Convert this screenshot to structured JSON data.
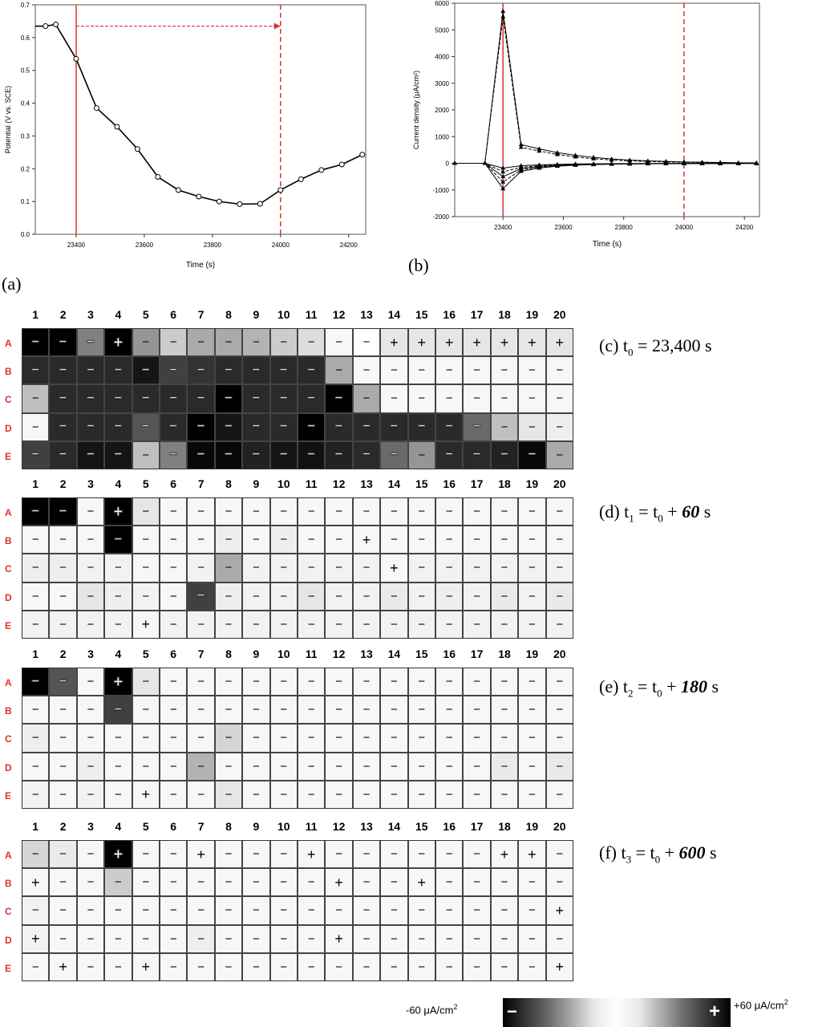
{
  "panel_labels": {
    "a": "(a)",
    "b": "(b)"
  },
  "chart_data": [
    {
      "id": "a",
      "type": "line",
      "xlabel": "Time (s)",
      "ylabel": "Potential (V vs. SCE)",
      "xlim": [
        23280,
        24250
      ],
      "ylim": [
        0.0,
        0.7
      ],
      "xticks": [
        23400,
        23600,
        23800,
        24000,
        24200
      ],
      "yticks": [
        0.0,
        0.1,
        0.2,
        0.3,
        0.4,
        0.5,
        0.6,
        0.7
      ],
      "ytick_labels": [
        "0.0",
        "0.1",
        "0.2",
        "0.3",
        "0.4",
        "0.5",
        "0.6",
        "0.7"
      ],
      "x": [
        23280,
        23310,
        23340,
        23400,
        23460,
        23520,
        23580,
        23640,
        23700,
        23760,
        23820,
        23880,
        23940,
        24000,
        24060,
        24120,
        24180,
        24240
      ],
      "y": [
        0.635,
        0.635,
        0.64,
        0.535,
        0.385,
        0.328,
        0.26,
        0.175,
        0.135,
        0.115,
        0.1,
        0.092,
        0.093,
        0.135,
        0.168,
        0.196,
        0.213,
        0.243
      ],
      "solid_vline": 23400,
      "dashed_vline": 24000,
      "arrow": {
        "from": 23400,
        "to": 24000,
        "y": 0.635
      },
      "accent": "#e03030"
    },
    {
      "id": "b",
      "type": "line",
      "xlabel": "Time (s)",
      "ylabel": "Current density (μA/cm²)",
      "xlim": [
        23240,
        24250
      ],
      "ylim": [
        -2000,
        6000
      ],
      "xticks": [
        23400,
        23600,
        23800,
        24000,
        24200
      ],
      "yticks": [
        -2000,
        -1000,
        0,
        1000,
        2000,
        3000,
        4000,
        5000,
        6000
      ],
      "solid_vline": 23400,
      "dashed_vline": 24000,
      "series": [
        {
          "values_x": [
            23240,
            23340,
            23400,
            23460,
            23520,
            23580,
            23640,
            23700,
            23760,
            23820,
            23880,
            23940,
            24000,
            24060,
            24120,
            24180,
            24240
          ],
          "values_y": [
            0,
            0,
            5700,
            700,
            540,
            400,
            300,
            220,
            160,
            120,
            90,
            70,
            50,
            40,
            30,
            20,
            15
          ]
        },
        {
          "values_x": [
            23240,
            23340,
            23400,
            23460,
            23520,
            23580,
            23640,
            23700,
            23760,
            23820,
            23880,
            23940,
            24000,
            24060,
            24120,
            24180,
            24240
          ],
          "values_y": [
            0,
            0,
            5500,
            600,
            460,
            330,
            240,
            170,
            120,
            90,
            70,
            50,
            40,
            30,
            20,
            15,
            10
          ]
        },
        {
          "values_x": [
            23240,
            23340,
            23400,
            23460,
            23520,
            23580,
            23640,
            23700,
            23760,
            23820,
            23880,
            23940,
            24000,
            24060,
            24120,
            24180,
            24240
          ],
          "values_y": [
            0,
            0,
            -950,
            -300,
            -180,
            -110,
            -70,
            -50,
            -35,
            -25,
            -20,
            -15,
            -10,
            -8,
            -6,
            -5,
            -4
          ]
        },
        {
          "values_x": [
            23240,
            23340,
            23400,
            23460,
            23520,
            23580,
            23640,
            23700,
            23760,
            23820,
            23880,
            23940,
            24000,
            24060,
            24120,
            24180,
            24240
          ],
          "values_y": [
            0,
            0,
            -700,
            -250,
            -150,
            -100,
            -60,
            -40,
            -30,
            -20,
            -15,
            -12,
            -9,
            -7,
            -5,
            -4,
            -3
          ]
        },
        {
          "values_x": [
            23240,
            23340,
            23400,
            23460,
            23520,
            23580,
            23640,
            23700,
            23760,
            23820,
            23880,
            23940,
            24000,
            24060,
            24120,
            24180,
            24240
          ],
          "values_y": [
            0,
            0,
            -500,
            -200,
            -120,
            -80,
            -50,
            -35,
            -25,
            -18,
            -13,
            -10,
            -8,
            -6,
            -5,
            -4,
            -3
          ]
        },
        {
          "values_x": [
            23240,
            23340,
            23400,
            23460,
            23520,
            23580,
            23640,
            23700,
            23760,
            23820,
            23880,
            23940,
            24000,
            24060,
            24120,
            24180,
            24240
          ],
          "values_y": [
            0,
            0,
            -320,
            -150,
            -90,
            -60,
            -40,
            -28,
            -20,
            -15,
            -11,
            -9,
            -7,
            -5,
            -4,
            -3,
            -2
          ]
        },
        {
          "values_x": [
            23240,
            23340,
            23400,
            23460,
            23520,
            23580,
            23640,
            23700,
            23760,
            23820,
            23880,
            23940,
            24000,
            24060,
            24120,
            24180,
            24240
          ],
          "values_y": [
            0,
            0,
            -180,
            -90,
            -60,
            -40,
            -28,
            -20,
            -14,
            -10,
            -8,
            -6,
            -5,
            -4,
            -3,
            -2,
            -2
          ]
        }
      ],
      "accent": "#e03030"
    }
  ],
  "grids": {
    "columns": [
      "1",
      "2",
      "3",
      "4",
      "5",
      "6",
      "7",
      "8",
      "9",
      "10",
      "11",
      "12",
      "13",
      "14",
      "15",
      "16",
      "17",
      "18",
      "19",
      "20"
    ],
    "rows": [
      "A",
      "B",
      "C",
      "D",
      "E"
    ],
    "row_label_color": "#e03030",
    "panels": [
      {
        "id": "c",
        "label_prefix": "(c) t",
        "label_sub": "0",
        "label_rest": " = 23,400 s",
        "label_bold": "",
        "label_suffix": "",
        "signs": [
          "--------------------------------",
          "",
          "",
          "",
          ""
        ],
        "values": [
          [
            -60,
            -60,
            -30,
            60,
            -25,
            -12,
            -20,
            -20,
            -18,
            -12,
            -8,
            -2,
            0,
            6,
            6,
            6,
            6,
            6,
            6,
            6
          ],
          [
            -50,
            -50,
            -50,
            -50,
            -55,
            -45,
            -48,
            -50,
            -50,
            -50,
            -50,
            -20,
            -2,
            -2,
            -2,
            -2,
            -2,
            -2,
            -2,
            -2
          ],
          [
            -15,
            -50,
            -50,
            -50,
            -50,
            -50,
            -50,
            -60,
            -50,
            -50,
            -50,
            -60,
            -20,
            -2,
            -2,
            -2,
            -2,
            -2,
            -2,
            -2
          ],
          [
            -2,
            -50,
            -50,
            -50,
            -40,
            -50,
            -60,
            -55,
            -50,
            -50,
            -60,
            -50,
            -50,
            -50,
            -50,
            -50,
            -35,
            -15,
            -6,
            -4
          ],
          [
            -45,
            -50,
            -55,
            -55,
            -15,
            -30,
            -58,
            -58,
            -52,
            -55,
            -56,
            -52,
            -50,
            -35,
            -25,
            -50,
            -50,
            -52,
            -58,
            -20
          ]
        ],
        "plus": [
          [
            0,
            3
          ],
          [
            0,
            13
          ],
          [
            0,
            14
          ],
          [
            0,
            15
          ],
          [
            0,
            16
          ],
          [
            0,
            17
          ],
          [
            0,
            18
          ],
          [
            0,
            19
          ]
        ]
      },
      {
        "id": "d",
        "label_prefix": "(d) t",
        "label_sub": "1",
        "label_rest": " = t",
        "label_sub2": "0",
        "label_plus": " + ",
        "label_bold": "60",
        "label_suffix": " s",
        "values": [
          [
            -60,
            -60,
            -2,
            60,
            -6,
            -2,
            -2,
            -2,
            -2,
            -2,
            -2,
            -2,
            -2,
            -2,
            -2,
            -2,
            -2,
            -2,
            -2,
            -2
          ],
          [
            -2,
            -2,
            -2,
            -60,
            -2,
            -2,
            -2,
            -4,
            -2,
            -4,
            -2,
            -2,
            2,
            -2,
            -2,
            -2,
            -2,
            -2,
            -2,
            -2
          ],
          [
            -4,
            -4,
            -3,
            -3,
            -2,
            -2,
            -3,
            -20,
            -3,
            -3,
            -3,
            -3,
            -3,
            2,
            -3,
            -3,
            -3,
            -3,
            -3,
            -3
          ],
          [
            -2,
            -2,
            -6,
            -4,
            -3,
            -2,
            -45,
            -4,
            -3,
            -3,
            -6,
            -3,
            -3,
            -5,
            -3,
            -4,
            -3,
            -5,
            -3,
            -5
          ],
          [
            -3,
            -3,
            -3,
            -3,
            2,
            -3,
            -3,
            -3,
            -3,
            -3,
            -3,
            -3,
            -3,
            -3,
            -3,
            -3,
            -3,
            -3,
            -3,
            -3
          ]
        ],
        "plus": [
          [
            0,
            3
          ],
          [
            1,
            12
          ],
          [
            2,
            13
          ],
          [
            4,
            4
          ]
        ]
      },
      {
        "id": "e",
        "label_prefix": "(e) t",
        "label_sub": "2",
        "label_rest": " = t",
        "label_sub2": "0",
        "label_plus": " + ",
        "label_bold": "180",
        "label_suffix": " s",
        "values": [
          [
            -60,
            -40,
            -2,
            60,
            -6,
            -2,
            -2,
            -2,
            -2,
            -2,
            -2,
            -2,
            -2,
            -2,
            -2,
            -2,
            -2,
            -2,
            -2,
            -2
          ],
          [
            -2,
            -2,
            -2,
            -45,
            -2,
            -2,
            -2,
            -2,
            -2,
            -2,
            -2,
            -2,
            -2,
            -2,
            -2,
            -2,
            -2,
            -2,
            -2,
            -2
          ],
          [
            -4,
            -2,
            -2,
            -2,
            -2,
            -2,
            -2,
            -10,
            -2,
            -2,
            -2,
            -2,
            -2,
            -2,
            -2,
            -2,
            -2,
            -2,
            -2,
            -2
          ],
          [
            -2,
            -2,
            -4,
            -2,
            -2,
            -2,
            -18,
            -2,
            -2,
            -2,
            -2,
            -2,
            -2,
            -2,
            -2,
            -2,
            -2,
            -5,
            -2,
            -5
          ],
          [
            -3,
            -2,
            -3,
            -2,
            2,
            -2,
            -2,
            -6,
            -2,
            -2,
            -2,
            -2,
            -2,
            -2,
            -2,
            -2,
            -2,
            -2,
            -2,
            -2
          ]
        ],
        "plus": [
          [
            0,
            3
          ],
          [
            4,
            4
          ]
        ]
      },
      {
        "id": "f",
        "label_prefix": "(f) t",
        "label_sub": "3",
        "label_rest": " = t",
        "label_sub2": "0",
        "label_plus": " + ",
        "label_bold": "600",
        "label_suffix": " s",
        "values": [
          [
            -10,
            -5,
            -2,
            60,
            -2,
            -2,
            2,
            -2,
            -2,
            -2,
            2,
            -2,
            -2,
            -2,
            -2,
            -2,
            -2,
            2,
            2,
            -2
          ],
          [
            2,
            -2,
            -2,
            -12,
            -2,
            -2,
            -2,
            -2,
            -2,
            -2,
            -2,
            2,
            -2,
            -2,
            2,
            -2,
            -2,
            -2,
            -2,
            -2
          ],
          [
            -3,
            -2,
            -2,
            -2,
            -2,
            -2,
            -2,
            -2,
            -2,
            -2,
            -2,
            -2,
            -2,
            -2,
            -2,
            -2,
            -2,
            -2,
            -2,
            2
          ],
          [
            3,
            -2,
            -2,
            -2,
            -2,
            -2,
            -4,
            -2,
            -2,
            -2,
            -2,
            2,
            -2,
            -2,
            -2,
            -2,
            -2,
            -2,
            -2,
            -2
          ],
          [
            -2,
            2,
            -2,
            -2,
            2,
            -2,
            -2,
            -2,
            -2,
            -2,
            -2,
            -2,
            -2,
            -2,
            -2,
            -2,
            -2,
            -2,
            -2,
            2
          ]
        ],
        "plus": [
          [
            0,
            3
          ],
          [
            0,
            6
          ],
          [
            0,
            10
          ],
          [
            0,
            17
          ],
          [
            0,
            18
          ],
          [
            1,
            0
          ],
          [
            1,
            11
          ],
          [
            1,
            14
          ],
          [
            2,
            19
          ],
          [
            3,
            0
          ],
          [
            3,
            11
          ],
          [
            4,
            1
          ],
          [
            4,
            4
          ],
          [
            4,
            19
          ]
        ]
      }
    ]
  },
  "colorbar": {
    "min_label": "-60 μA/cm",
    "max_label": "+60 μA/cm",
    "unit_sup": "2",
    "min_symbol": "−",
    "max_symbol": "+"
  },
  "cell_symbols": {
    "plus": "+",
    "minus": "−"
  }
}
